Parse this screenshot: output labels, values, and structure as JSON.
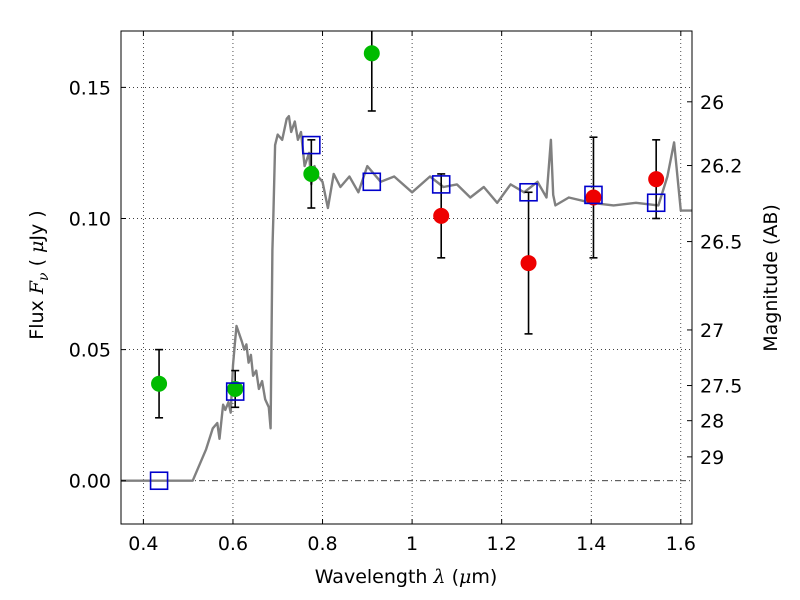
{
  "chart_data": {
    "type": "scatter",
    "xlabel": "Wavelength  λ (μm)",
    "ylabel": "Flux  F_ν  ( μJy )",
    "y2label": "Magnitude (AB)",
    "xlim": [
      0.35,
      1.625
    ],
    "ylim": [
      -0.0165,
      0.1715
    ],
    "grid": true,
    "x_ticks": [
      0.4,
      0.6,
      0.8,
      1.0,
      1.2,
      1.4,
      1.6
    ],
    "x_tick_labels": [
      "0.4",
      "0.6",
      "0.8",
      "1",
      "1.2",
      "1.4",
      "1.6"
    ],
    "y_ticks": [
      0.0,
      0.05,
      0.1,
      0.15
    ],
    "y_tick_labels": [
      "0.00",
      "0.05",
      "0.10",
      "0.15"
    ],
    "right_ticks": [
      {
        "label": "26",
        "flux": 0.1445
      },
      {
        "label": "26.2",
        "flux": 0.1202
      },
      {
        "label": "26.5",
        "flux": 0.0912
      },
      {
        "label": "27",
        "flux": 0.0575
      },
      {
        "label": "27.5",
        "flux": 0.0363
      },
      {
        "label": "28",
        "flux": 0.0229
      },
      {
        "label": "29",
        "flux": 0.0091
      }
    ],
    "colors": {
      "model": "#808080",
      "green_points": "#00bb00",
      "red_points": "#ee0000",
      "squares": "#0000cc",
      "errorbars": "#000000"
    },
    "series": [
      {
        "marker": "line",
        "x": [
          0.35,
          0.51,
          0.54,
          0.555,
          0.565,
          0.57,
          0.578,
          0.583,
          0.59,
          0.595,
          0.6,
          0.604,
          0.608,
          0.612,
          0.62,
          0.625,
          0.63,
          0.635,
          0.64,
          0.645,
          0.652,
          0.658,
          0.665,
          0.672,
          0.68,
          0.684,
          0.688,
          0.69,
          0.694,
          0.7,
          0.71,
          0.72,
          0.725,
          0.73,
          0.738,
          0.745,
          0.752,
          0.76,
          0.77,
          0.775,
          0.782,
          0.79,
          0.8,
          0.812,
          0.825,
          0.84,
          0.86,
          0.88,
          0.9,
          0.93,
          0.96,
          1.0,
          1.04,
          1.07,
          1.1,
          1.13,
          1.16,
          1.19,
          1.22,
          1.25,
          1.28,
          1.3,
          1.31,
          1.315,
          1.32,
          1.35,
          1.4,
          1.45,
          1.5,
          1.55,
          1.57,
          1.585,
          1.6,
          1.625
        ],
        "y": [
          0.0,
          0.0,
          0.012,
          0.02,
          0.022,
          0.016,
          0.029,
          0.027,
          0.03,
          0.026,
          0.044,
          0.052,
          0.059,
          0.057,
          0.053,
          0.05,
          0.052,
          0.045,
          0.048,
          0.04,
          0.042,
          0.035,
          0.038,
          0.031,
          0.028,
          0.02,
          0.088,
          0.1,
          0.128,
          0.132,
          0.13,
          0.138,
          0.139,
          0.133,
          0.137,
          0.13,
          0.133,
          0.12,
          0.125,
          0.113,
          0.12,
          0.116,
          0.114,
          0.104,
          0.117,
          0.112,
          0.116,
          0.11,
          0.12,
          0.114,
          0.116,
          0.11,
          0.116,
          0.112,
          0.113,
          0.108,
          0.112,
          0.106,
          0.113,
          0.11,
          0.114,
          0.108,
          0.13,
          0.109,
          0.105,
          0.108,
          0.106,
          0.105,
          0.106,
          0.105,
          0.116,
          0.129,
          0.103,
          0.103
        ]
      },
      {
        "marker": "circle-green",
        "x": [
          0.435,
          0.605,
          0.775,
          0.91
        ],
        "y": [
          0.037,
          0.035,
          0.117,
          0.163
        ],
        "err": [
          0.013,
          0.007,
          0.013,
          0.022
        ]
      },
      {
        "marker": "circle-red",
        "x": [
          1.065,
          1.26,
          1.405,
          1.545
        ],
        "y": [
          0.101,
          0.083,
          0.108,
          0.115
        ],
        "err": [
          0.016,
          0.027,
          0.023,
          0.015
        ]
      },
      {
        "marker": "square-blue",
        "x": [
          0.435,
          0.605,
          0.775,
          0.91,
          1.065,
          1.26,
          1.405,
          1.545
        ],
        "y": [
          0.0,
          0.034,
          0.128,
          0.114,
          0.113,
          0.11,
          0.109,
          0.106
        ]
      }
    ]
  }
}
